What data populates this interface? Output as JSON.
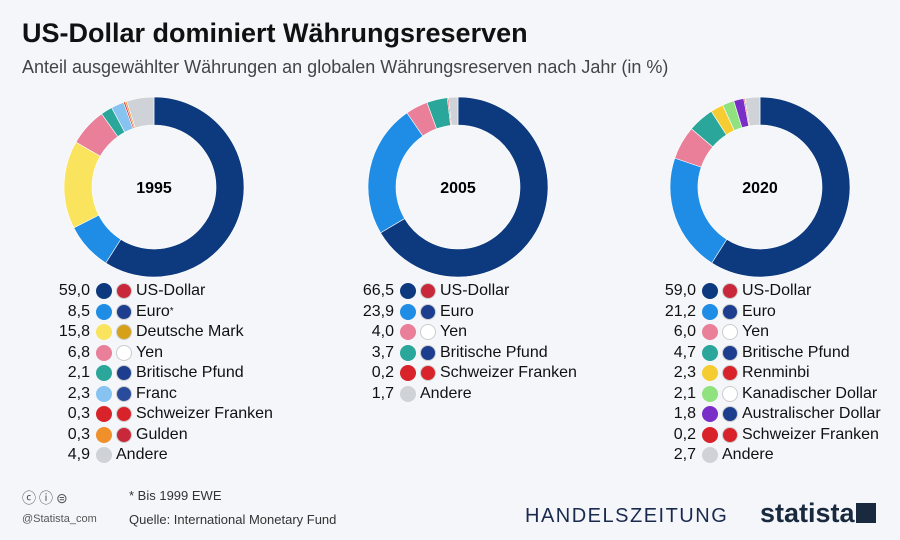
{
  "title": "US-Dollar dominiert Währungsreserven",
  "subtitle": "Anteil ausgewählter Währungen an globalen Währungsreserven nach Jahr (in %)",
  "chart_data": [
    {
      "type": "pie",
      "title": "1995",
      "series": [
        {
          "label": "US-Dollar",
          "value": 59.0,
          "value_text": "59,0",
          "color": "#0d3a7e",
          "flag": "us-flag"
        },
        {
          "label": "Euro",
          "sup": "*",
          "value": 8.5,
          "value_text": "8,5",
          "color": "#1f8de6",
          "flag": "eu-flag"
        },
        {
          "label": "Deutsche Mark",
          "value": 15.8,
          "value_text": "15,8",
          "color": "#fae35d",
          "flag": "de-flag"
        },
        {
          "label": "Yen",
          "value": 6.8,
          "value_text": "6,8",
          "color": "#e97f99",
          "flag": "jp-flag"
        },
        {
          "label": "Britische Pfund",
          "value": 2.1,
          "value_text": "2,1",
          "color": "#2aa69a",
          "flag": "uk-flag"
        },
        {
          "label": "Franc",
          "value": 2.3,
          "value_text": "2,3",
          "color": "#86c3f1",
          "flag": "fr-flag"
        },
        {
          "label": "Schweizer Franken",
          "value": 0.3,
          "value_text": "0,3",
          "color": "#d8232a",
          "flag": "ch-flag"
        },
        {
          "label": "Gulden",
          "value": 0.3,
          "value_text": "0,3",
          "color": "#f0902a",
          "flag": "nl-flag"
        },
        {
          "label": "Andere",
          "value": 4.9,
          "value_text": "4,9",
          "color": "#cfd3d8",
          "flag": ""
        }
      ]
    },
    {
      "type": "pie",
      "title": "2005",
      "series": [
        {
          "label": "US-Dollar",
          "value": 66.5,
          "value_text": "66,5",
          "color": "#0d3a7e",
          "flag": "us-flag"
        },
        {
          "label": "Euro",
          "value": 23.9,
          "value_text": "23,9",
          "color": "#1f8de6",
          "flag": "eu-flag"
        },
        {
          "label": "Yen",
          "value": 4.0,
          "value_text": "4,0",
          "color": "#e97f99",
          "flag": "jp-flag"
        },
        {
          "label": "Britische Pfund",
          "value": 3.7,
          "value_text": "3,7",
          "color": "#2aa69a",
          "flag": "uk-flag"
        },
        {
          "label": "Schweizer Franken",
          "value": 0.2,
          "value_text": "0,2",
          "color": "#d8232a",
          "flag": "ch-flag"
        },
        {
          "label": "Andere",
          "value": 1.7,
          "value_text": "1,7",
          "color": "#cfd3d8",
          "flag": ""
        }
      ]
    },
    {
      "type": "pie",
      "title": "2020",
      "series": [
        {
          "label": "US-Dollar",
          "value": 59.0,
          "value_text": "59,0",
          "color": "#0d3a7e",
          "flag": "us-flag"
        },
        {
          "label": "Euro",
          "value": 21.2,
          "value_text": "21,2",
          "color": "#1f8de6",
          "flag": "eu-flag"
        },
        {
          "label": "Yen",
          "value": 6.0,
          "value_text": "6,0",
          "color": "#e97f99",
          "flag": "jp-flag"
        },
        {
          "label": "Britische Pfund",
          "value": 4.7,
          "value_text": "4,7",
          "color": "#2aa69a",
          "flag": "uk-flag"
        },
        {
          "label": "Renminbi",
          "value": 2.3,
          "value_text": "2,3",
          "color": "#f5cd33",
          "flag": "cn-flag"
        },
        {
          "label": "Kanadischer Dollar",
          "value": 2.1,
          "value_text": "2,1",
          "color": "#8fe27e",
          "flag": "ca-flag"
        },
        {
          "label": "Australischer Dollar",
          "value": 1.8,
          "value_text": "1,8",
          "color": "#7a2ec8",
          "flag": "au-flag"
        },
        {
          "label": "Schweizer Franken",
          "value": 0.2,
          "value_text": "0,2",
          "color": "#d8232a",
          "flag": "ch-flag"
        },
        {
          "label": "Andere",
          "value": 2.7,
          "value_text": "2,7",
          "color": "#cfd3d8",
          "flag": ""
        }
      ]
    }
  ],
  "footer": {
    "note": "* Bis 1999 EWE",
    "source": "Quelle: International Monetary Fund",
    "handle": "@Statista_com",
    "brand1": "HANDELSZEITUNG",
    "brand2": "statista"
  }
}
